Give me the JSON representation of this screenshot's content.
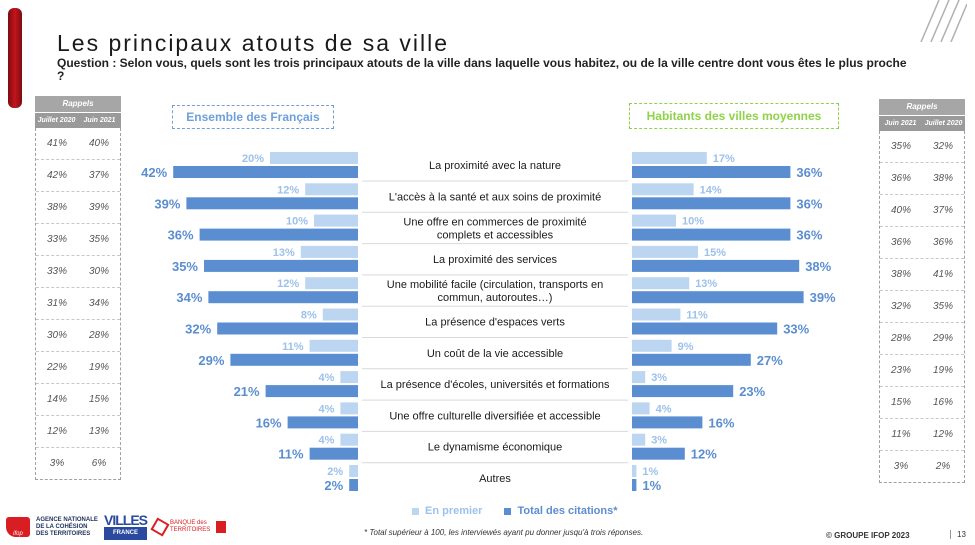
{
  "title": "Les principaux atouts de sa ville",
  "question": "Question : Selon vous, quels sont les trois principaux atouts de la ville dans laquelle vous habitez, ou de la ville centre dont vous êtes le plus proche ?",
  "left_box": "Ensemble des Français",
  "right_box": "Habitants des villes moyennes",
  "rappels_left": {
    "header": "Rappels",
    "col1": "Juillet 2020",
    "col2": "Juin 2021",
    "rows": [
      [
        "41%",
        "40%"
      ],
      [
        "42%",
        "37%"
      ],
      [
        "38%",
        "39%"
      ],
      [
        "33%",
        "35%"
      ],
      [
        "33%",
        "30%"
      ],
      [
        "31%",
        "34%"
      ],
      [
        "30%",
        "28%"
      ],
      [
        "22%",
        "19%"
      ],
      [
        "14%",
        "15%"
      ],
      [
        "12%",
        "13%"
      ],
      [
        "3%",
        "6%"
      ]
    ]
  },
  "rappels_right": {
    "header": "Rappels",
    "col1": "Juin 2021",
    "col2": "Juillet 2020",
    "rows": [
      [
        "35%",
        "32%"
      ],
      [
        "36%",
        "38%"
      ],
      [
        "40%",
        "37%"
      ],
      [
        "36%",
        "36%"
      ],
      [
        "38%",
        "41%"
      ],
      [
        "32%",
        "35%"
      ],
      [
        "28%",
        "29%"
      ],
      [
        "23%",
        "19%"
      ],
      [
        "15%",
        "16%"
      ],
      [
        "11%",
        "12%"
      ],
      [
        "3%",
        "2%"
      ]
    ]
  },
  "chart_data": {
    "type": "bar",
    "categories": [
      "La proximité avec la nature",
      "L'accès à la santé et aux soins de proximité",
      "Une offre en commerces de proximité|complets et accessibles",
      "La proximité des services",
      "Une mobilité facile (circulation, transports en|commun, autoroutes…)",
      "La présence d'espaces verts",
      "Un coût de la vie accessible",
      "La présence d'écoles, universités et formations",
      "Une offre culturelle diversifiée et accessible",
      "Le dynamisme économique",
      "Autres"
    ],
    "groups": [
      {
        "name": "Ensemble des Français",
        "series": [
          {
            "name": "En premier",
            "values": [
              20,
              12,
              10,
              13,
              12,
              8,
              11,
              4,
              4,
              4,
              2
            ]
          },
          {
            "name": "Total des citations*",
            "values": [
              42,
              39,
              36,
              35,
              34,
              32,
              29,
              21,
              16,
              11,
              2
            ]
          }
        ]
      },
      {
        "name": "Habitants des villes moyennes",
        "series": [
          {
            "name": "En premier",
            "values": [
              17,
              14,
              10,
              15,
              13,
              11,
              9,
              3,
              4,
              3,
              1
            ]
          },
          {
            "name": "Total des citations*",
            "values": [
              36,
              36,
              36,
              38,
              39,
              33,
              27,
              23,
              16,
              12,
              1
            ]
          }
        ]
      }
    ]
  },
  "legend": {
    "first": "En premier",
    "total": "Total des citations*"
  },
  "colors": {
    "first": "#bcd5f1",
    "total": "#5b8ed1",
    "red": "#c4141c"
  },
  "footnote": "* Total supérieur à 100, les interviewés ayant pu donner jusqu'à trois réponses.",
  "copyright": "© GROUPE IFOP 2023",
  "page_number": "13",
  "logos": {
    "ifop": "ifop",
    "anct": "AGENCE NATIONALE DE LA COHÉSION DES TERRITOIRES",
    "villes": "VILLES",
    "villes_sub": "FRANCE",
    "bdt": "BANQUE des TERRITOIRES"
  }
}
